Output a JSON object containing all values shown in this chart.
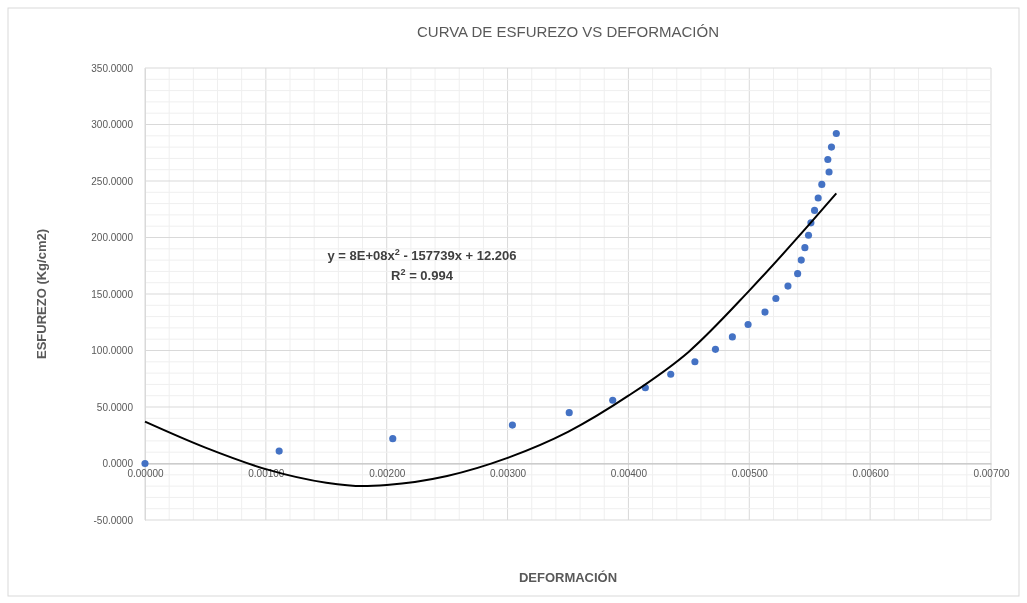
{
  "chart_data": {
    "type": "scatter",
    "title": "CURVA DE ESFUREZO VS DEFORMACIÓN",
    "xlabel": "DEFORMACIÓN",
    "ylabel": "ESFUREZO (Kg/cm2)",
    "annotations": [
      "y = 8E+08x$^{2}$ - 157739x + 12.206",
      "R$^{2}$ = 0.994"
    ],
    "series": [
      {
        "color": "#4472c4",
        "x": [
          0,
          0.00111,
          0.00205,
          0.00304,
          0.00351,
          0.00387,
          0.00414,
          0.00435,
          0.00455,
          0.00472,
          0.00486,
          0.00499,
          0.00513,
          0.00522,
          0.00532,
          0.0054,
          0.00543,
          0.00546,
          0.00549,
          0.00551,
          0.00554,
          0.00557,
          0.0056,
          0.00566,
          0.00565,
          0.00568,
          0.00572
        ],
        "values": [
          0,
          11,
          22,
          34,
          45,
          56,
          67,
          79,
          90,
          101,
          112,
          123,
          134,
          146,
          157,
          168,
          180,
          191,
          202,
          213,
          224,
          235,
          247,
          258,
          269,
          280,
          292
        ]
      },
      {
        "type": "line",
        "color": "#000000",
        "marker": "none",
        "x": [
          0,
          0.0005,
          0.001,
          0.0015,
          0.0018,
          0.002,
          0.0025,
          0.003,
          0.0035,
          0.004,
          0.0045,
          0.005,
          0.0055,
          0.00572
        ],
        "values": [
          37,
          14,
          -5,
          -17,
          -20,
          -19,
          -11,
          5,
          28,
          60,
          99,
          153,
          212,
          239
        ]
      }
    ],
    "marker": "circle",
    "grid": true,
    "xlim": [
      0,
      0.007
    ],
    "xticks": [
      {
        "value": 0,
        "label": "0.00000"
      },
      {
        "value": 0.001,
        "label": "0.00100"
      },
      {
        "value": 0.002,
        "label": "0.00200"
      },
      {
        "value": 0.003,
        "label": "0.00300"
      },
      {
        "value": 0.004,
        "label": "0.00400"
      },
      {
        "value": 0.005,
        "label": "0.00500"
      },
      {
        "value": 0.006,
        "label": "0.00600"
      },
      {
        "value": 0.007,
        "label": "0.00700"
      }
    ],
    "ylim": [
      -50,
      350
    ],
    "yticks": [
      {
        "value": -50,
        "label": "-50.0000"
      },
      {
        "value": 0,
        "label": "0.0000"
      },
      {
        "value": 50,
        "label": "50.0000"
      },
      {
        "value": 100,
        "label": "100.0000"
      },
      {
        "value": 150,
        "label": "150.0000"
      },
      {
        "value": 200,
        "label": "200.0000"
      },
      {
        "value": 250,
        "label": "250.0000"
      },
      {
        "value": 300,
        "label": "300.0000"
      },
      {
        "value": 350,
        "label": "350.0000"
      }
    ]
  }
}
